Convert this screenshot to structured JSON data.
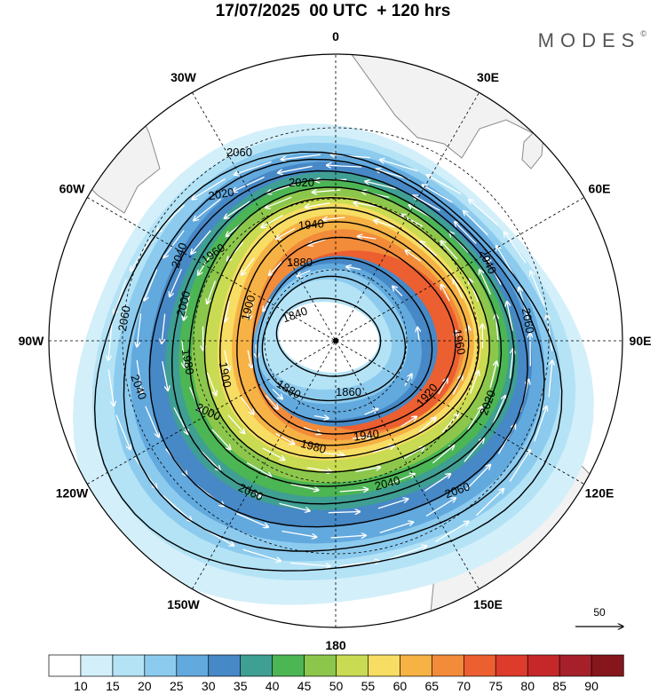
{
  "title": "17/07/2025  00 UTC  + 120 hrs",
  "brand": "MODES",
  "brand_mark": "©",
  "longitude_labels": [
    {
      "text": "0",
      "lon": 0
    },
    {
      "text": "30E",
      "lon": 30
    },
    {
      "text": "60E",
      "lon": 60
    },
    {
      "text": "90E",
      "lon": 90
    },
    {
      "text": "120E",
      "lon": 120
    },
    {
      "text": "150E",
      "lon": 150
    },
    {
      "text": "180",
      "lon": 180
    },
    {
      "text": "150W",
      "lon": -150
    },
    {
      "text": "120W",
      "lon": -120
    },
    {
      "text": "90W",
      "lon": -90
    },
    {
      "text": "60W",
      "lon": -60
    },
    {
      "text": "30W",
      "lon": -30
    }
  ],
  "contour_labels": [
    "2060",
    "2040",
    "2020",
    "2000",
    "1980",
    "1960",
    "1940",
    "1920",
    "1900",
    "1880",
    "1860",
    "1840"
  ],
  "reference_vector": {
    "value": "50"
  },
  "colorbar": {
    "labels": [
      "10",
      "15",
      "20",
      "25",
      "30",
      "35",
      "40",
      "45",
      "50",
      "55",
      "60",
      "65",
      "70",
      "75",
      "80",
      "85",
      "90"
    ],
    "colors": [
      "#ffffff",
      "#d3effa",
      "#b4e3f6",
      "#8ccbee",
      "#62a9de",
      "#4788c6",
      "#3f9f93",
      "#4cb554",
      "#8cc74c",
      "#c9db52",
      "#f7dd63",
      "#f6b245",
      "#f28b3a",
      "#ec5f30",
      "#dd3b2c",
      "#c62829",
      "#a5202a",
      "#84161c"
    ]
  },
  "colors": {
    "land": "#f2f2f2",
    "coast": "#8a8a8a",
    "contour": "#000000",
    "vector": "#ffffff"
  }
}
